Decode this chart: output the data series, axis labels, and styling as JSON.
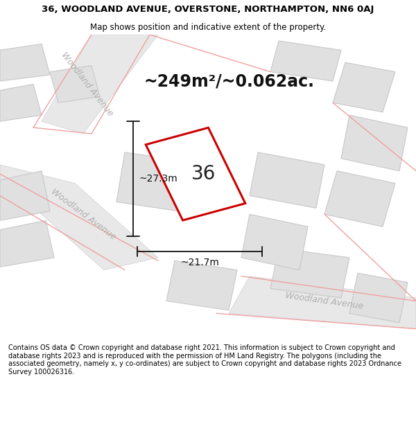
{
  "title": "36, WOODLAND AVENUE, OVERSTONE, NORTHAMPTON, NN6 0AJ",
  "subtitle": "Map shows position and indicative extent of the property.",
  "footer": "Contains OS data © Crown copyright and database right 2021. This information is subject to Crown copyright and database rights 2023 and is reproduced with the permission of HM Land Registry. The polygons (including the associated geometry, namely x, y co-ordinates) are subject to Crown copyright and database rights 2023 Ordnance Survey 100026316.",
  "area_label": "~249m²/~0.062ac.",
  "width_label": "~21.7m",
  "height_label": "~27.3m",
  "number_label": "36",
  "map_bg": "#f2f2f2",
  "building_fill": "#e0e0e0",
  "building_edge": "#c8c8c8",
  "plot_stroke": "#cc0000",
  "plot_fill": "#ffffff",
  "measure_color": "#111111",
  "road_label_color": "#b0b0b0",
  "pink": "#f0a0a0",
  "title_fontsize": 9.5,
  "subtitle_fontsize": 8.5,
  "area_fontsize": 17,
  "number_fontsize": 20,
  "measure_fontsize": 10,
  "road_label_fontsize": 9,
  "footer_fontsize": 7
}
